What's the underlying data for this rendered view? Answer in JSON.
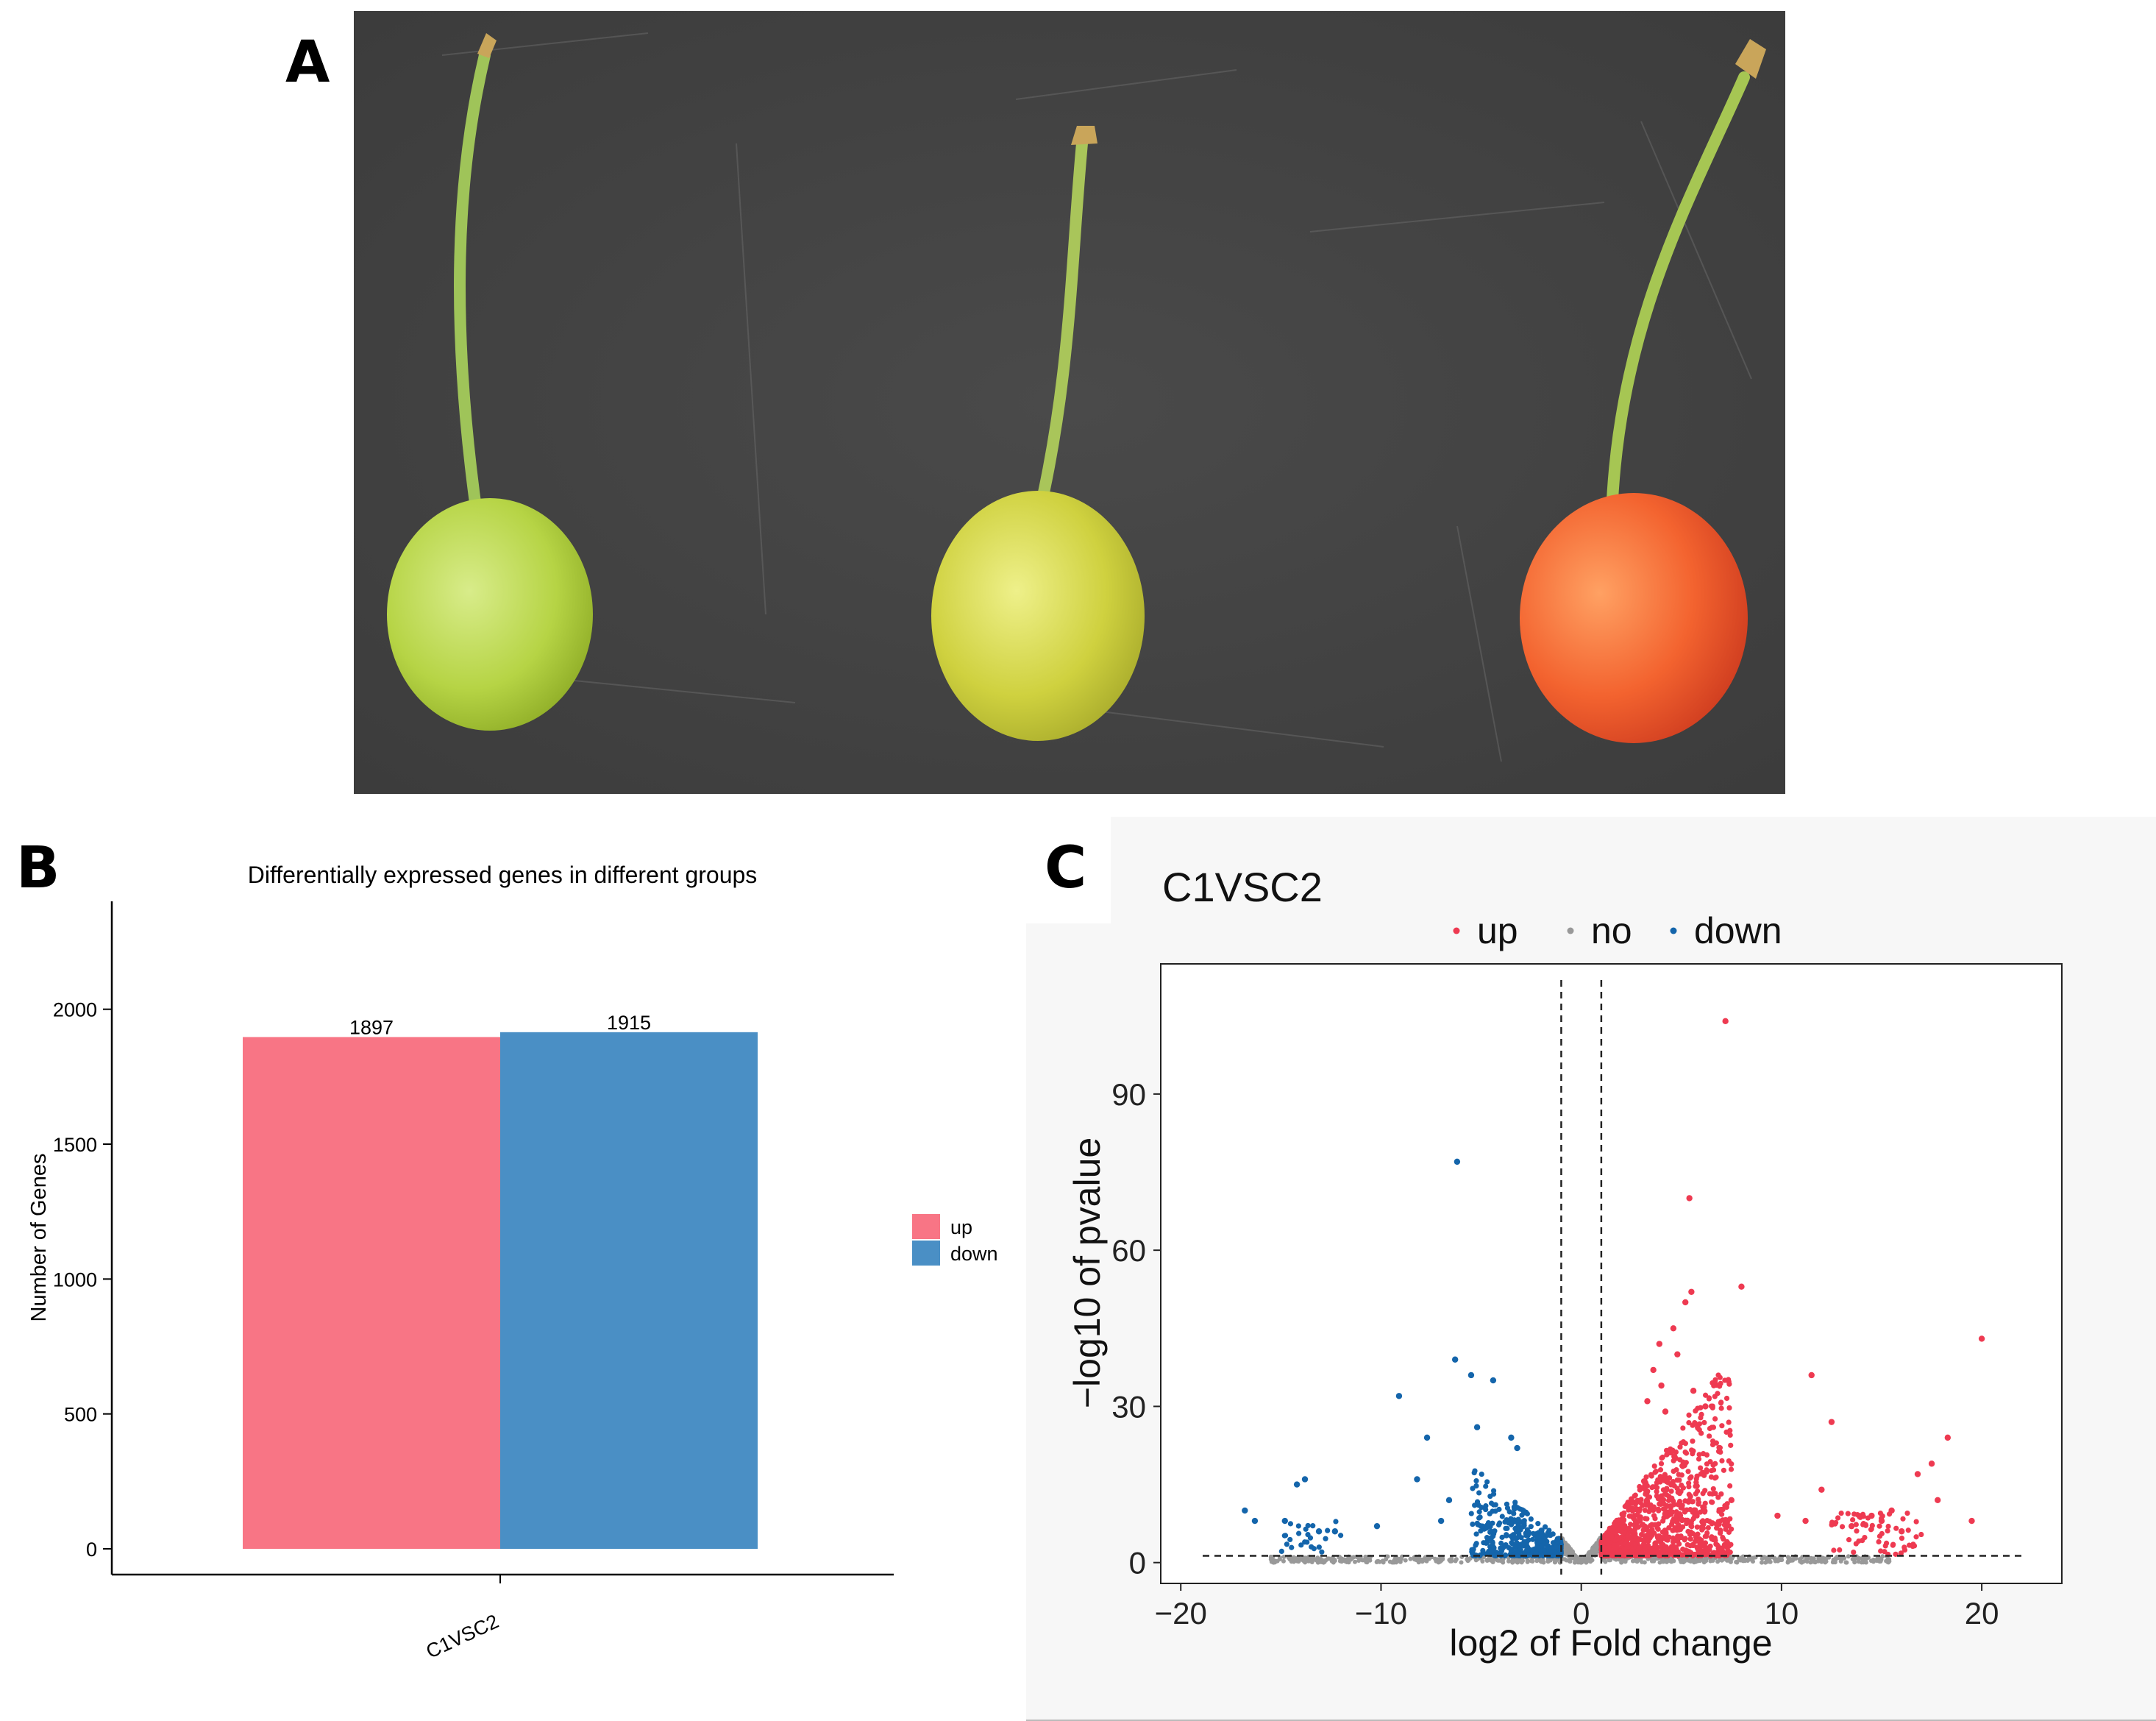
{
  "panels": {
    "a": {
      "letter": "A"
    },
    "b": {
      "letter": "B"
    },
    "c": {
      "letter": "C"
    }
  },
  "colors": {
    "up": "#f87585",
    "down": "#4a8fc5",
    "volcano_up": "#ee3a51",
    "volcano_down": "#1465ab",
    "volcano_no": "#999999",
    "background_c": "#f7f7f7"
  },
  "chart_data": [
    {
      "type": "bar",
      "title": "Differentially expressed genes in different groups",
      "xlabel": "",
      "ylabel": "Number of Genes",
      "categories": [
        "C1VSC2"
      ],
      "series": [
        {
          "name": "up",
          "values": [
            1897
          ]
        },
        {
          "name": "down",
          "values": [
            1915
          ]
        }
      ],
      "data_labels": [
        "1897",
        "1915"
      ],
      "ylim": [
        0,
        2400
      ],
      "yticks": [
        "0",
        "500",
        "1000",
        "1500",
        "2000"
      ],
      "legend": {
        "placement": "right",
        "entries": [
          "up",
          "down"
        ]
      },
      "grid": false
    },
    {
      "type": "scatter",
      "title": "C1VSC2",
      "xlabel": "log2 of Fold change",
      "ylabel": "−log10 of pvalue",
      "xlim": [
        -21,
        24
      ],
      "ylim": [
        -4,
        115
      ],
      "xticks": [
        "−20",
        "−10",
        "0",
        "10",
        "20"
      ],
      "yticks": [
        "0",
        "30",
        "60",
        "90"
      ],
      "thresholds": {
        "x": [
          -1,
          1
        ],
        "y": 1.3
      },
      "legend": {
        "placement": "top",
        "entries": [
          "up",
          "no",
          "down"
        ]
      },
      "grid": false,
      "series": [
        {
          "name": "up",
          "points": [
            [
              7.2,
              104
            ],
            [
              5.4,
              70
            ],
            [
              8.0,
              53
            ],
            [
              20,
              43
            ],
            [
              11.5,
              36
            ],
            [
              5.5,
              52
            ],
            [
              5.2,
              50
            ],
            [
              4.6,
              45
            ],
            [
              3.9,
              42
            ],
            [
              4.8,
              40
            ],
            [
              3.6,
              37
            ],
            [
              4.0,
              34
            ],
            [
              5.6,
              33
            ],
            [
              3.3,
              31
            ],
            [
              6.2,
              30
            ],
            [
              4.2,
              29
            ],
            [
              12.5,
              27
            ],
            [
              18.3,
              24
            ],
            [
              17.5,
              19
            ],
            [
              16.8,
              17
            ],
            [
              14.5,
              9
            ],
            [
              15.0,
              8
            ],
            [
              15.5,
              10
            ],
            [
              13.5,
              7
            ],
            [
              16.0,
              6
            ],
            [
              17.8,
              12
            ],
            [
              19.5,
              8
            ],
            [
              12.0,
              14
            ],
            [
              11.2,
              8
            ],
            [
              9.8,
              9
            ],
            [
              7.5,
              12
            ]
          ]
        },
        {
          "name": "down",
          "points": [
            [
              -6.2,
              77
            ],
            [
              -6.3,
              39
            ],
            [
              -5.5,
              36
            ],
            [
              -4.4,
              35
            ],
            [
              -9.1,
              32
            ],
            [
              -7.7,
              24
            ],
            [
              -5.2,
              26
            ],
            [
              -3.5,
              24
            ],
            [
              -3.2,
              22
            ],
            [
              -13.8,
              16
            ],
            [
              -14.2,
              15
            ],
            [
              -16.8,
              10
            ],
            [
              -16.3,
              8
            ],
            [
              -14.8,
              8
            ],
            [
              -12.3,
              6
            ],
            [
              -13.1,
              6
            ],
            [
              -7.0,
              8
            ],
            [
              -8.2,
              16
            ],
            [
              -6.6,
              12
            ],
            [
              -10.2,
              7
            ]
          ]
        },
        {
          "name": "no",
          "points": []
        }
      ]
    }
  ]
}
